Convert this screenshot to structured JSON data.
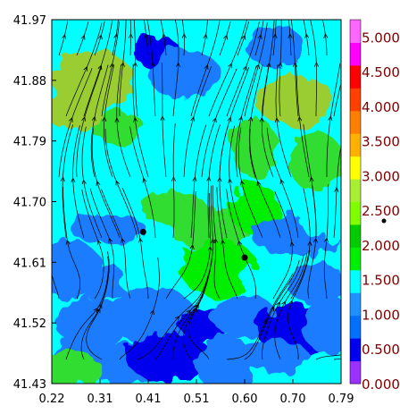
{
  "chart_data": {
    "type": "heatmap",
    "overlay": "streamlines",
    "xlim": [
      0.22,
      0.79
    ],
    "ylim": [
      41.43,
      41.97
    ],
    "x_ticks": [
      "0.22",
      "0.31",
      "0.41",
      "0.51",
      "0.60",
      "0.70",
      "0.79"
    ],
    "y_ticks": [
      "41.43",
      "41.52",
      "41.61",
      "41.70",
      "41.79",
      "41.88",
      "41.97"
    ],
    "colorbar": {
      "range": [
        0,
        5.25
      ],
      "labels": [
        "0.000",
        "0.500",
        "1.000",
        "1.500",
        "2.000",
        "2.500",
        "3.000",
        "3.500",
        "4.000",
        "4.500",
        "5.000"
      ],
      "colors": [
        "#9b30ff",
        "#0000ee",
        "#0070ff",
        "#1e90ff",
        "#00ffff",
        "#00ee00",
        "#00cc00",
        "#7fff00",
        "#aaee33",
        "#ffff00",
        "#ffb000",
        "#ff7f00",
        "#ff4000",
        "#ff0000",
        "#ff00ff",
        "#ff66ff"
      ]
    },
    "markers": [
      {
        "x": 0.4,
        "y": 41.655
      },
      {
        "x": 0.6,
        "y": 41.617
      }
    ],
    "regions": [
      {
        "x": 0.43,
        "y": 41.92,
        "value": 0.4
      },
      {
        "x": 0.66,
        "y": 41.93,
        "value": 0.6
      },
      {
        "x": 0.48,
        "y": 41.89,
        "value": 0.9
      },
      {
        "x": 0.3,
        "y": 41.88,
        "value": 2.6
      },
      {
        "x": 0.35,
        "y": 41.81,
        "value": 2.2
      },
      {
        "x": 0.26,
        "y": 41.84,
        "value": 2.7
      },
      {
        "x": 0.7,
        "y": 41.85,
        "value": 2.6
      },
      {
        "x": 0.62,
        "y": 41.78,
        "value": 2.1
      },
      {
        "x": 0.5,
        "y": 41.76,
        "value": 1.4
      },
      {
        "x": 0.45,
        "y": 41.75,
        "value": 1.3
      },
      {
        "x": 0.36,
        "y": 41.74,
        "value": 1.2
      },
      {
        "x": 0.74,
        "y": 41.76,
        "value": 2.3
      },
      {
        "x": 0.46,
        "y": 41.69,
        "value": 2.2
      },
      {
        "x": 0.53,
        "y": 41.66,
        "value": 2.2
      },
      {
        "x": 0.62,
        "y": 41.69,
        "value": 1.9
      },
      {
        "x": 0.26,
        "y": 41.7,
        "value": 1.1
      },
      {
        "x": 0.33,
        "y": 41.66,
        "value": 0.5
      },
      {
        "x": 0.7,
        "y": 41.65,
        "value": 0.6
      },
      {
        "x": 0.76,
        "y": 41.68,
        "value": 1.3
      },
      {
        "x": 0.25,
        "y": 41.6,
        "value": 0.7
      },
      {
        "x": 0.32,
        "y": 41.58,
        "value": 0.8
      },
      {
        "x": 0.4,
        "y": 41.59,
        "value": 1.4
      },
      {
        "x": 0.47,
        "y": 41.57,
        "value": 1.0
      },
      {
        "x": 0.55,
        "y": 41.6,
        "value": 1.5
      },
      {
        "x": 0.64,
        "y": 41.58,
        "value": 1.2
      },
      {
        "x": 0.74,
        "y": 41.58,
        "value": 0.7
      },
      {
        "x": 0.3,
        "y": 41.52,
        "value": 0.6
      },
      {
        "x": 0.42,
        "y": 41.53,
        "value": 0.5
      },
      {
        "x": 0.52,
        "y": 41.52,
        "value": 0.4
      },
      {
        "x": 0.6,
        "y": 41.53,
        "value": 0.5
      },
      {
        "x": 0.7,
        "y": 41.51,
        "value": 0.4
      },
      {
        "x": 0.76,
        "y": 41.52,
        "value": 0.6
      },
      {
        "x": 0.27,
        "y": 41.47,
        "value": 0.6
      },
      {
        "x": 0.36,
        "y": 41.46,
        "value": 0.5
      },
      {
        "x": 0.45,
        "y": 41.47,
        "value": 0.4
      },
      {
        "x": 0.56,
        "y": 41.46,
        "value": 0.6
      },
      {
        "x": 0.66,
        "y": 41.47,
        "value": 0.5
      },
      {
        "x": 0.24,
        "y": 41.45,
        "value": 2.4
      }
    ]
  }
}
